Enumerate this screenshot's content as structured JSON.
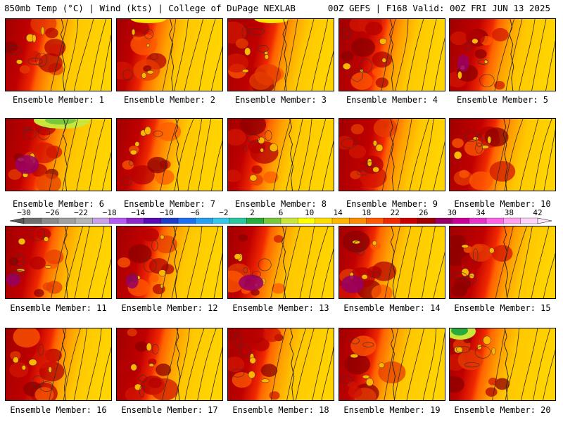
{
  "header": {
    "title": "850mb Temp (°C) | Wind (kts) | College of DuPage NEXLAB",
    "run_info": "00Z GEFS | F168 Valid: 00Z FRI JUN 13 2025"
  },
  "panels": [
    {
      "caption": "Ensemble Member: 1"
    },
    {
      "caption": "Ensemble Member: 2"
    },
    {
      "caption": "Ensemble Member: 3"
    },
    {
      "caption": "Ensemble Member: 4"
    },
    {
      "caption": "Ensemble Member: 5"
    },
    {
      "caption": "Ensemble Member: 6"
    },
    {
      "caption": "Ensemble Member: 7"
    },
    {
      "caption": "Ensemble Member: 8"
    },
    {
      "caption": "Ensemble Member: 9"
    },
    {
      "caption": "Ensemble Member: 10"
    },
    {
      "caption": "Ensemble Member: 11"
    },
    {
      "caption": "Ensemble Member: 12"
    },
    {
      "caption": "Ensemble Member: 13"
    },
    {
      "caption": "Ensemble Member: 14"
    },
    {
      "caption": "Ensemble Member: 15"
    },
    {
      "caption": "Ensemble Member: 16"
    },
    {
      "caption": "Ensemble Member: 17"
    },
    {
      "caption": "Ensemble Member: 18"
    },
    {
      "caption": "Ensemble Member: 19"
    },
    {
      "caption": "Ensemble Member: 20"
    }
  ],
  "colorbar": {
    "labels": [
      "-30",
      "-26",
      "-22",
      "-18",
      "-14",
      "-10",
      "-6",
      "-2",
      "2",
      "6",
      "10",
      "14",
      "18",
      "22",
      "26",
      "30",
      "34",
      "38",
      "42"
    ],
    "colors": [
      "#6e6e6e",
      "#8a8a8a",
      "#a0a0a0",
      "#b4b4b4",
      "#c8a0e6",
      "#b45af0",
      "#8c28c8",
      "#5a0ab4",
      "#1e3cc8",
      "#1e6ef0",
      "#28a0f0",
      "#32c8e6",
      "#28c8a0",
      "#28aa3c",
      "#78c83c",
      "#c8e63c",
      "#ffff00",
      "#ffdc00",
      "#ffb400",
      "#ff8c00",
      "#ff5a00",
      "#f02800",
      "#c80000",
      "#a00000",
      "#960064",
      "#c80096",
      "#e632c8",
      "#ff64e6",
      "#ffa0f0",
      "#ffd2fa"
    ]
  },
  "theme": {
    "cold_base": "#e63c00",
    "hot_core": "#a00000",
    "warm_east": "#ffc800"
  }
}
